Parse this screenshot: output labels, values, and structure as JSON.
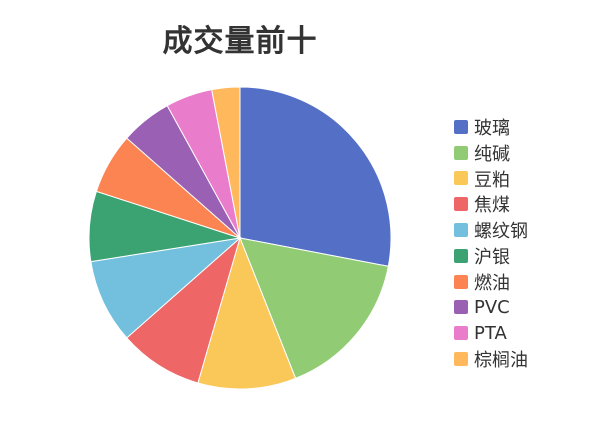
{
  "chart_data": {
    "type": "pie",
    "title": "成交量前十",
    "categories": [
      "玻璃",
      "纯碱",
      "豆粕",
      "焦煤",
      "螺纹钢",
      "沪银",
      "燃油",
      "PVC",
      "PTA",
      "棕榈油"
    ],
    "values": [
      28.0,
      16.0,
      10.5,
      9.0,
      9.0,
      7.5,
      6.5,
      5.5,
      5.0,
      3.0
    ],
    "colors": [
      "#5470c6",
      "#91cc75",
      "#fac858",
      "#ee6666",
      "#73c0de",
      "#3ba272",
      "#fc8452",
      "#9a60b4",
      "#ea7ccc",
      "#ffb85c"
    ],
    "start_angle": "12 o'clock",
    "direction": "clockwise",
    "legend_position": "right"
  }
}
